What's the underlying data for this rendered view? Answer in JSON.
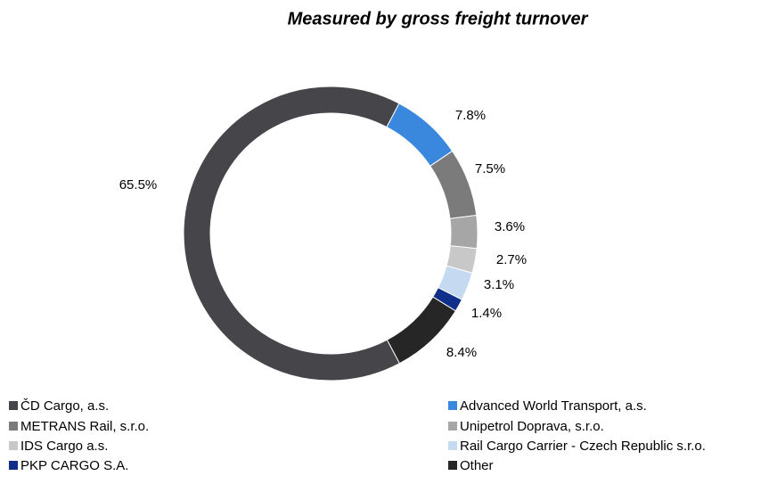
{
  "chart_data": {
    "type": "donut",
    "title": "Measured by gross freight turnover",
    "series": [
      {
        "name": "ČD Cargo, a.s.",
        "color": "#46454a",
        "values": [
          65.5
        ],
        "value_labels": [
          "65.5%"
        ]
      },
      {
        "name": "Advanced World Transport, a.s.",
        "color": "#3a87de",
        "values": [
          7.8
        ],
        "value_labels": [
          "7.8%"
        ]
      },
      {
        "name": "METRANS Rail, s.r.o.",
        "color": "#7b7b7b",
        "values": [
          7.5
        ],
        "value_labels": [
          "7.5%"
        ]
      },
      {
        "name": "Unipetrol Doprava, s.r.o.",
        "color": "#a6a6a6",
        "values": [
          3.6
        ],
        "value_labels": [
          "3.6%"
        ]
      },
      {
        "name": "IDS Cargo a.s.",
        "color": "#c8c8c8",
        "values": [
          2.7
        ],
        "value_labels": [
          "2.7%"
        ]
      },
      {
        "name": "Rail Cargo Carrier - Czech Republic s.r.o.",
        "color": "#c5d9f1",
        "values": [
          3.1
        ],
        "value_labels": [
          "3.1%"
        ]
      },
      {
        "name": "PKP CARGO S.A.",
        "color": "#0f2f8a",
        "values": [
          1.4
        ],
        "value_labels": [
          "1.4%"
        ]
      },
      {
        "name": "Other",
        "color": "#262626",
        "values": [
          8.4
        ],
        "value_labels": [
          "8.4%"
        ]
      }
    ]
  }
}
